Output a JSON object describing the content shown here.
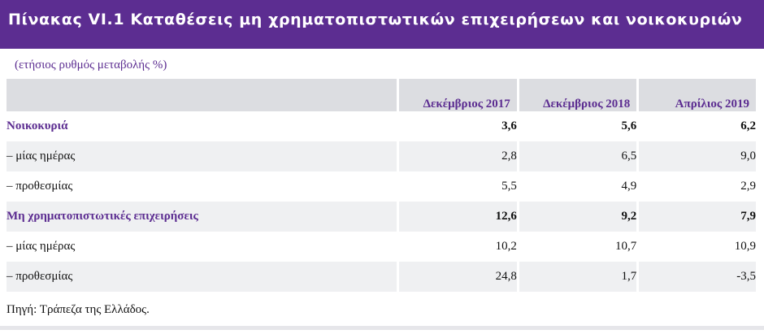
{
  "title": "Πίνακας VI.1 Καταθέσεις μη χρηματοπιστωτικών επιχειρήσεων και νοικοκυριών",
  "subtitle": "(ετήσιος ρυθμός μεταβολής %)",
  "columns": [
    "Δεκέμβριος 2017",
    "Δεκέμβριος 2018",
    "Απρίλιος 2019"
  ],
  "rows": [
    {
      "label": "Νοικοκυριά",
      "values": [
        "3,6",
        "5,6",
        "6,2"
      ]
    },
    {
      "label": "– μίας ημέρας",
      "values": [
        "2,8",
        "6,5",
        "9,0"
      ]
    },
    {
      "label": "– προθεσμίας",
      "values": [
        "5,5",
        "4,9",
        "2,9"
      ]
    },
    {
      "label": "Μη χρηματοπιστωτικές επιχειρήσεις",
      "values": [
        "12,6",
        "9,2",
        "7,9"
      ]
    },
    {
      "label": "– μίας ημέρας",
      "values": [
        "10,2",
        "10,7",
        "10,9"
      ]
    },
    {
      "label": "– προθεσμίας",
      "values": [
        "24,8",
        "1,7",
        "-3,5"
      ]
    }
  ],
  "source": "Πηγή: Τράπεζα της Ελλάδος.",
  "colors": {
    "accent": "#5c2d91",
    "header_bg": "#dcdde1",
    "row_shade": "#eff0f2"
  }
}
